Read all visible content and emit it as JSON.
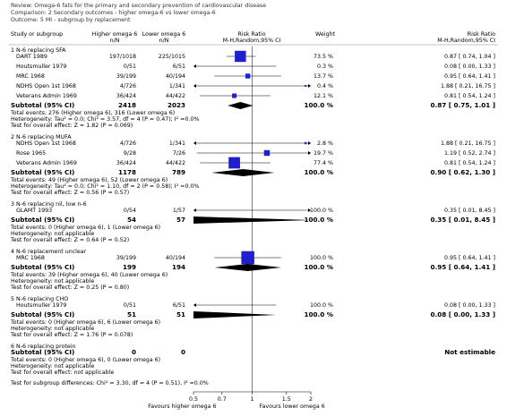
{
  "header": {
    "review": "Review:  Omega-6 fats for the primary and secondary prevention of cardiovascular disease",
    "comparison": "Comparison:  2 Secondary outcomes - higher omega-6 vs lower omega-6",
    "outcome": "Outcome:  5 MI - subgroup by replacement"
  },
  "columns": {
    "study": "Study or subgroup",
    "higher": "Higher omega 6",
    "higher_sub": "n/N",
    "lower": "Lower omega 6",
    "lower_sub": "n/N",
    "plot": "Risk Ratio",
    "plot_sub": "M-H,Random,95% CI",
    "weight": "Weight",
    "rr": "Risk Ratio",
    "rr_sub": "M-H,Random,95% CI"
  },
  "axis": {
    "scale": "log",
    "xlim": [
      0.5,
      2
    ],
    "xticks": [
      0.5,
      0.7,
      1,
      1.5,
      2
    ],
    "left_label": "Favours higher omega 6",
    "right_label": "Favours lower omega 6"
  },
  "groups": [
    {
      "title": "1 N-6 replacing SFA",
      "studies": [
        {
          "name": "DART 1989",
          "higher": "197/1018",
          "lower": "225/1015",
          "weight": 73.5,
          "weight_label": "73.5 %",
          "rr": 0.87,
          "ci": [
            0.74,
            1.04
          ],
          "rr_label": "0.87 [ 0.74, 1.04 ]"
        },
        {
          "name": "Houtsmuller 1979",
          "higher": "0/51",
          "lower": "6/51",
          "weight": 0.3,
          "weight_label": "0.3 %",
          "rr": 0.08,
          "ci": [
            0.0,
            1.33
          ],
          "rr_label": "0.08 [ 0.00, 1.33 ]"
        },
        {
          "name": "MRC 1968",
          "higher": "39/199",
          "lower": "40/194",
          "weight": 13.7,
          "weight_label": "13.7 %",
          "rr": 0.95,
          "ci": [
            0.64,
            1.41
          ],
          "rr_label": "0.95 [ 0.64, 1.41 ]"
        },
        {
          "name": "NDHS Open 1st 1968",
          "higher": "4/726",
          "lower": "1/341",
          "weight": 0.4,
          "weight_label": "0.4 %",
          "rr": 1.88,
          "ci": [
            0.21,
            16.75
          ],
          "rr_label": "1.88 [ 0.21, 16.75 ]"
        },
        {
          "name": "Veterans Admin 1969",
          "higher": "36/424",
          "lower": "44/422",
          "weight": 12.1,
          "weight_label": "12.1 %",
          "rr": 0.81,
          "ci": [
            0.54,
            1.24
          ],
          "rr_label": "0.81 [ 0.54, 1.24 ]"
        }
      ],
      "subtotal": {
        "label": "Subtotal (95% CI)",
        "higher": 2418,
        "lower": 2023,
        "weight_label": "100.0 %",
        "rr": 0.87,
        "ci": [
          0.75,
          1.01
        ],
        "rr_label": "0.87 [ 0.75, 1.01 ]"
      },
      "notes": [
        "Total events: 276 (Higher omega 6), 316 (Lower omega 6)",
        "Heterogeneity: Tau² = 0.0; Chi² = 3.57, df = 4 (P = 0.47); I² =0.0%",
        "Test for overall effect: Z = 1.82 (P = 0.069)"
      ]
    },
    {
      "title": "2 N-6 replacing MUFA",
      "studies": [
        {
          "name": "NDHS Open 1st 1968",
          "higher": "4/726",
          "lower": "1/341",
          "weight": 2.8,
          "weight_label": "2.8 %",
          "rr": 1.88,
          "ci": [
            0.21,
            16.75
          ],
          "rr_label": "1.88 [ 0.21, 16.75 ]"
        },
        {
          "name": "Rose 1965",
          "higher": "9/28",
          "lower": "7/26",
          "weight": 19.7,
          "weight_label": "19.7 %",
          "rr": 1.19,
          "ci": [
            0.52,
            2.74
          ],
          "rr_label": "1.19 [ 0.52, 2.74 ]"
        },
        {
          "name": "Veterans Admin 1969",
          "higher": "36/424",
          "lower": "44/422",
          "weight": 77.4,
          "weight_label": "77.4 %",
          "rr": 0.81,
          "ci": [
            0.54,
            1.24
          ],
          "rr_label": "0.81 [ 0.54, 1.24 ]"
        }
      ],
      "subtotal": {
        "label": "Subtotal (95% CI)",
        "higher": 1178,
        "lower": 789,
        "weight_label": "100.0 %",
        "rr": 0.9,
        "ci": [
          0.62,
          1.3
        ],
        "rr_label": "0.90 [ 0.62, 1.30 ]"
      },
      "notes": [
        "Total events: 49 (Higher omega 6), 52 (Lower omega 6)",
        "Heterogeneity: Tau² = 0.0; Chi² = 1.10, df = 2 (P = 0.58); I² =0.0%",
        "Test for overall effect: Z = 0.56 (P = 0.57)"
      ]
    },
    {
      "title": "3 N-6 replacing nil, low n-6",
      "studies": [
        {
          "name": "GLAMT 1993",
          "higher": "0/54",
          "lower": "1/57",
          "weight": 100.0,
          "weight_label": "100.0 %",
          "rr": 0.35,
          "ci": [
            0.01,
            8.45
          ],
          "rr_label": "0.35 [ 0.01, 8.45 ]"
        }
      ],
      "subtotal": {
        "label": "Subtotal (95% CI)",
        "higher": 54,
        "lower": 57,
        "weight_label": "100.0 %",
        "rr": 0.35,
        "ci": [
          0.01,
          8.45
        ],
        "rr_label": "0.35 [ 0.01, 8.45 ]"
      },
      "notes": [
        "Total events: 0 (Higher omega 6), 1 (Lower omega 6)",
        "Heterogeneity: not applicable",
        "Test for overall effect: Z = 0.64 (P = 0.52)"
      ]
    },
    {
      "title": "4 N-6 replacement unclear",
      "studies": [
        {
          "name": "MRC 1968",
          "higher": "39/199",
          "lower": "40/194",
          "weight": 100.0,
          "weight_label": "100.0 %",
          "rr": 0.95,
          "ci": [
            0.64,
            1.41
          ],
          "rr_label": "0.95 [ 0.64, 1.41 ]"
        }
      ],
      "subtotal": {
        "label": "Subtotal (95% CI)",
        "higher": 199,
        "lower": 194,
        "weight_label": "100.0 %",
        "rr": 0.95,
        "ci": [
          0.64,
          1.41
        ],
        "rr_label": "0.95 [ 0.64, 1.41 ]"
      },
      "notes": [
        "Total events: 39 (Higher omega 6), 40 (Lower omega 6)",
        "Heterogeneity: not applicable",
        "Test for overall effect: Z = 0.25 (P = 0.80)"
      ]
    },
    {
      "title": "5 N-6 replacing CHO",
      "studies": [
        {
          "name": "Houtsmuller 1979",
          "higher": "0/51",
          "lower": "6/51",
          "weight": 100.0,
          "weight_label": "100.0 %",
          "rr": 0.08,
          "ci": [
            0.0,
            1.33
          ],
          "rr_label": "0.08 [ 0.00, 1.33 ]"
        }
      ],
      "subtotal": {
        "label": "Subtotal (95% CI)",
        "higher": 51,
        "lower": 51,
        "weight_label": "100.0 %",
        "rr": 0.08,
        "ci": [
          0.0,
          1.33
        ],
        "rr_label": "0.08 [ 0.00, 1.33 ]"
      },
      "notes": [
        "Total events: 0 (Higher omega 6), 6 (Lower omega 6)",
        "Heterogeneity: not applicable",
        "Test for overall effect: Z = 1.76 (P = 0.078)"
      ]
    },
    {
      "title": "6 N-6 replacing protein",
      "studies": [],
      "subtotal": {
        "label": "Subtotal (95% CI)",
        "higher": 0,
        "lower": 0,
        "rr_label": "Not estimable"
      },
      "notes": [
        "Total events: 0 (Higher omega 6), 0 (Lower omega 6)",
        "Heterogeneity: not applicable",
        "Test for overall effect: not applicable"
      ]
    }
  ],
  "footer": "Test for subgroup differences: Chi² = 3.30, df = 4 (P = 0.51), I² =0.0%"
}
